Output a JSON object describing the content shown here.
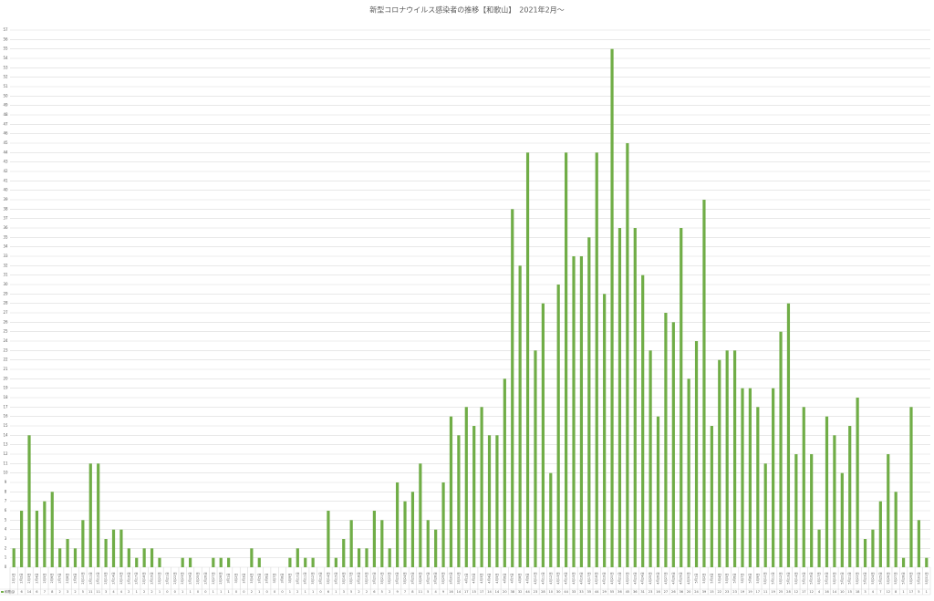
{
  "chart_data": {
    "type": "bar",
    "title": "新型コロナウイルス感染者の推移【和歌山】　2021年2月～",
    "categories": [
      "2月1日",
      "2月2日",
      "2月3日",
      "2月4日",
      "2月5日",
      "2月6日",
      "2月7日",
      "2月8日",
      "2月9日",
      "2月10日",
      "2月11日",
      "2月12日",
      "2月13日",
      "2月14日",
      "2月15日",
      "2月16日",
      "2月17日",
      "2月18日",
      "2月19日",
      "2月20日",
      "2月21日",
      "2月22日",
      "2月23日",
      "2月24日",
      "2月25日",
      "2月26日",
      "2月27日",
      "2月28日",
      "3月1日",
      "3月2日",
      "3月3日",
      "3月4日",
      "3月5日",
      "3月6日",
      "3月7日",
      "3月8日",
      "3月9日",
      "3月10日",
      "3月11日",
      "3月12日",
      "3月13日",
      "3月14日",
      "3月15日",
      "3月16日",
      "3月17日",
      "3月18日",
      "3月19日",
      "3月20日",
      "3月21日",
      "3月22日",
      "3月23日",
      "3月24日",
      "3月25日",
      "3月26日",
      "3月27日",
      "3月28日",
      "3月29日",
      "3月30日",
      "3月31日",
      "4月1日",
      "4月2日",
      "4月3日",
      "4月4日",
      "4月5日",
      "4月6日",
      "4月7日",
      "4月8日",
      "4月9日",
      "4月10日",
      "4月11日",
      "4月12日",
      "4月13日",
      "4月14日",
      "4月15日",
      "4月16日",
      "4月17日",
      "4月18日",
      "4月19日",
      "4月20日",
      "4月21日",
      "4月22日",
      "4月23日",
      "4月24日",
      "4月25日",
      "4月26日",
      "4月27日",
      "4月28日",
      "4月29日",
      "4月30日",
      "5月1日",
      "5月2日",
      "5月3日",
      "5月4日",
      "5月5日",
      "5月6日",
      "5月7日",
      "5月8日",
      "5月9日",
      "5月10日",
      "5月11日",
      "5月12日",
      "5月13日",
      "5月14日",
      "5月15日",
      "5月16日",
      "5月17日",
      "5月18日",
      "5月19日",
      "5月20日",
      "5月21日",
      "5月22日",
      "5月23日",
      "5月24日",
      "5月25日",
      "5月26日",
      "5月27日",
      "5月28日",
      "5月29日",
      "5月30日",
      "5月31日"
    ],
    "series": [
      {
        "name": "和歌山",
        "color": "#70ad47",
        "values": [
          2,
          6,
          14,
          6,
          7,
          8,
          2,
          3,
          2,
          5,
          11,
          11,
          3,
          4,
          4,
          2,
          1,
          2,
          2,
          1,
          0,
          0,
          1,
          1,
          0,
          0,
          1,
          1,
          1,
          0,
          0,
          2,
          1,
          0,
          0,
          0,
          1,
          2,
          1,
          1,
          0,
          6,
          1,
          3,
          5,
          2,
          2,
          6,
          5,
          2,
          9,
          7,
          8,
          11,
          5,
          4,
          9,
          16,
          14,
          17,
          15,
          17,
          14,
          14,
          20,
          38,
          32,
          44,
          23,
          28,
          10,
          30,
          44,
          33,
          33,
          35,
          44,
          29,
          55,
          36,
          45,
          36,
          31,
          23,
          16,
          27,
          26,
          36,
          20,
          24,
          39,
          15,
          22,
          23,
          23,
          19,
          19,
          17,
          11,
          19,
          25,
          28,
          12,
          17,
          12,
          4,
          16,
          14,
          10,
          15,
          18,
          3,
          4,
          7,
          12,
          8,
          1,
          17,
          5,
          1
        ]
      }
    ],
    "ylim": [
      0,
      57
    ],
    "yticks": [
      0,
      1,
      2,
      3,
      4,
      5,
      6,
      7,
      8,
      9,
      10,
      11,
      12,
      13,
      14,
      15,
      16,
      17,
      18,
      19,
      20,
      21,
      22,
      23,
      24,
      25,
      26,
      27,
      28,
      29,
      30,
      31,
      32,
      33,
      34,
      35,
      36,
      37,
      38,
      39,
      40,
      41,
      42,
      43,
      44,
      45,
      46,
      47,
      48,
      49,
      50,
      51,
      52,
      53,
      54,
      55,
      56,
      57
    ],
    "grid": true
  }
}
